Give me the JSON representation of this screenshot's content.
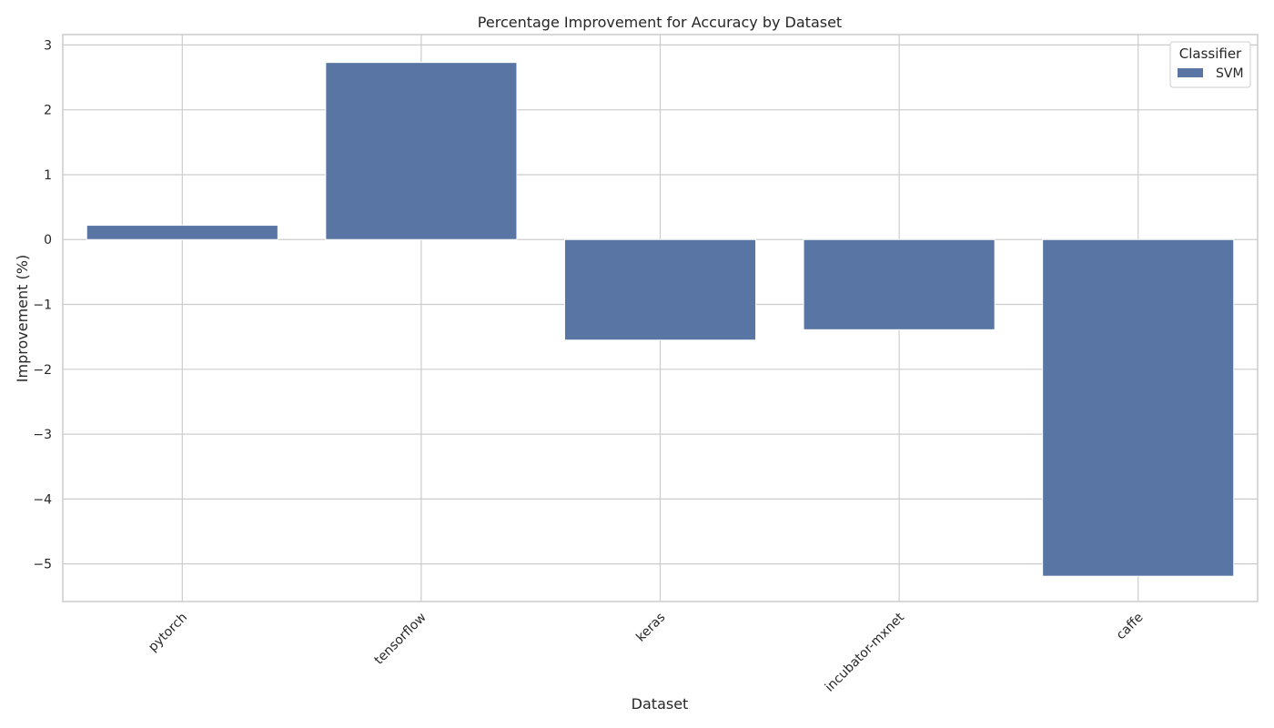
{
  "chart_data": {
    "type": "bar",
    "title": "Percentage Improvement for Accuracy by Dataset",
    "xlabel": "Dataset",
    "ylabel": "Improvement (%)",
    "categories": [
      "pytorch",
      "tensorflow",
      "keras",
      "incubator-mxnet",
      "caffe"
    ],
    "series": [
      {
        "name": "SVM",
        "values": [
          0.22,
          2.73,
          -1.55,
          -1.39,
          -5.19
        ]
      }
    ],
    "ylim": [
      -5.58,
      3.16
    ],
    "yticks": [
      3,
      2,
      1,
      0,
      -1,
      -2,
      -3,
      -4,
      -5
    ],
    "ytick_labels": [
      "3",
      "2",
      "1",
      "0",
      "−1",
      "−2",
      "−3",
      "−4",
      "−5"
    ],
    "grid": true,
    "legend": {
      "title": "Classifier",
      "placement": "top-right"
    },
    "colors": {
      "bar": "#5875a4",
      "grid": "#cccccc",
      "spine": "#cccccc"
    }
  }
}
